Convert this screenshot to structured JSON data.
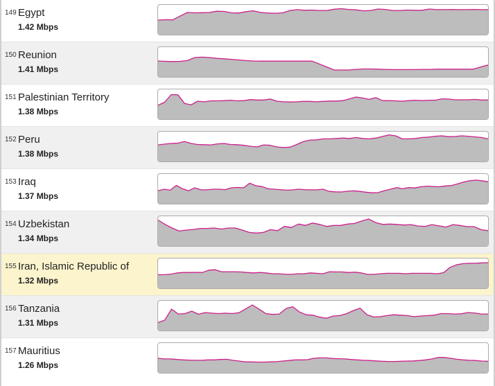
{
  "chart_data": {
    "type": "area",
    "colors": {
      "line": "#cc1f8a",
      "fill": "#bdbdbd",
      "highlight_row": "#fbf4cd"
    },
    "ylim": [
      0,
      1
    ],
    "rows": [
      {
        "rank": "149",
        "country": "Egypt",
        "speed": "1.42 Mbps",
        "values": [
          0.38,
          0.4,
          0.39,
          0.58,
          0.76,
          0.74,
          0.75,
          0.76,
          0.82,
          0.81,
          0.74,
          0.73,
          0.8,
          0.84,
          0.76,
          0.73,
          0.72,
          0.74,
          0.86,
          0.9,
          0.87,
          0.88,
          0.86,
          0.86,
          0.92,
          0.95,
          0.91,
          0.89,
          0.84,
          0.86,
          0.93,
          0.91,
          0.86,
          0.86,
          0.88,
          0.87,
          0.87,
          0.93,
          0.9,
          0.9,
          0.91,
          0.9,
          0.9,
          0.91,
          0.9,
          0.9
        ]
      },
      {
        "rank": "150",
        "country": "Reunion",
        "speed": "1.41 Mbps",
        "values": [
          0.45,
          0.43,
          0.42,
          0.43,
          0.47,
          0.62,
          0.64,
          0.62,
          0.58,
          0.56,
          0.53,
          0.5,
          0.47,
          0.45,
          0.44,
          0.44,
          0.44,
          0.44,
          0.44,
          0.44,
          0.44,
          0.44,
          0.3,
          0.15,
          0.0,
          0.0,
          0.0,
          0.03,
          0.05,
          0.05,
          0.04,
          0.03,
          0.02,
          0.02,
          0.02,
          0.02,
          0.03,
          0.03,
          0.04,
          0.04,
          0.04,
          0.04,
          0.04,
          0.04,
          0.15,
          0.25
        ]
      },
      {
        "rank": "151",
        "country": "Palestinian Territory",
        "speed": "1.38 Mbps",
        "values": [
          0.35,
          0.5,
          0.88,
          0.87,
          0.44,
          0.37,
          0.55,
          0.52,
          0.57,
          0.57,
          0.58,
          0.6,
          0.57,
          0.58,
          0.63,
          0.61,
          0.61,
          0.66,
          0.55,
          0.52,
          0.51,
          0.52,
          0.54,
          0.54,
          0.52,
          0.54,
          0.56,
          0.56,
          0.58,
          0.67,
          0.76,
          0.71,
          0.64,
          0.73,
          0.58,
          0.58,
          0.57,
          0.55,
          0.58,
          0.6,
          0.58,
          0.6,
          0.6,
          0.67,
          0.66,
          0.62,
          0.62,
          0.62,
          0.64,
          0.61,
          0.61
        ]
      },
      {
        "rank": "152",
        "country": "Peru",
        "speed": "1.38 Mbps",
        "values": [
          0.48,
          0.52,
          0.55,
          0.57,
          0.65,
          0.55,
          0.5,
          0.49,
          0.48,
          0.53,
          0.55,
          0.5,
          0.49,
          0.46,
          0.41,
          0.38,
          0.48,
          0.46,
          0.38,
          0.35,
          0.37,
          0.5,
          0.64,
          0.72,
          0.73,
          0.78,
          0.78,
          0.8,
          0.82,
          0.8,
          0.85,
          0.8,
          0.78,
          0.82,
          0.9,
          0.98,
          0.93,
          0.78,
          0.78,
          0.8,
          0.85,
          0.87,
          0.91,
          0.93,
          0.89,
          0.9,
          0.93,
          0.91,
          0.88,
          0.85,
          0.78
        ]
      },
      {
        "rank": "153",
        "country": "Iraq",
        "speed": "1.37 Mbps",
        "values": [
          0.3,
          0.38,
          0.33,
          0.57,
          0.4,
          0.3,
          0.45,
          0.35,
          0.35,
          0.38,
          0.38,
          0.36,
          0.45,
          0.47,
          0.45,
          0.68,
          0.55,
          0.51,
          0.4,
          0.38,
          0.36,
          0.33,
          0.35,
          0.38,
          0.36,
          0.35,
          0.35,
          0.38,
          0.27,
          0.25,
          0.24,
          0.28,
          0.3,
          0.27,
          0.23,
          0.2,
          0.21,
          0.3,
          0.38,
          0.46,
          0.4,
          0.46,
          0.44,
          0.5,
          0.53,
          0.51,
          0.5,
          0.54,
          0.56,
          0.64,
          0.73,
          0.8,
          0.83,
          0.8,
          0.75
        ]
      },
      {
        "rank": "154",
        "country": "Uzbekistan",
        "speed": "1.34 Mbps",
        "values": [
          0.95,
          0.73,
          0.55,
          0.4,
          0.45,
          0.48,
          0.53,
          0.53,
          0.55,
          0.5,
          0.55,
          0.55,
          0.45,
          0.33,
          0.3,
          0.33,
          0.47,
          0.42,
          0.63,
          0.58,
          0.75,
          0.68,
          0.8,
          0.73,
          0.63,
          0.68,
          0.68,
          0.75,
          0.78,
          0.9,
          1.0,
          0.82,
          0.73,
          0.75,
          0.73,
          0.7,
          0.72,
          0.65,
          0.63,
          0.72,
          0.66,
          0.6,
          0.72,
          0.68,
          0.62,
          0.62,
          0.47,
          0.42
        ]
      },
      {
        "rank": "155",
        "country": "Iran, Islamic Republic of",
        "speed": "1.32 Mbps",
        "values": [
          0.33,
          0.33,
          0.36,
          0.42,
          0.44,
          0.44,
          0.45,
          0.44,
          0.56,
          0.58,
          0.48,
          0.48,
          0.48,
          0.47,
          0.44,
          0.42,
          0.44,
          0.42,
          0.38,
          0.38,
          0.36,
          0.35,
          0.38,
          0.38,
          0.42,
          0.4,
          0.38,
          0.48,
          0.47,
          0.47,
          0.44,
          0.46,
          0.42,
          0.35,
          0.35,
          0.38,
          0.4,
          0.4,
          0.4,
          0.38,
          0.4,
          0.4,
          0.4,
          0.4,
          0.38,
          0.43,
          0.7,
          0.82,
          0.88,
          0.9,
          0.9,
          0.92,
          0.93
        ]
      },
      {
        "rank": "156",
        "country": "Tanzania",
        "speed": "1.31 Mbps",
        "values": [
          0.05,
          0.18,
          0.72,
          0.48,
          0.5,
          0.62,
          0.47,
          0.55,
          0.52,
          0.5,
          0.52,
          0.5,
          0.54,
          0.73,
          0.93,
          0.72,
          0.5,
          0.46,
          0.48,
          0.75,
          0.84,
          0.58,
          0.44,
          0.42,
          0.32,
          0.27,
          0.38,
          0.4,
          0.5,
          0.65,
          0.77,
          0.45,
          0.33,
          0.35,
          0.4,
          0.44,
          0.42,
          0.4,
          0.35,
          0.38,
          0.4,
          0.42,
          0.5,
          0.5,
          0.48,
          0.49,
          0.55,
          0.53,
          0.48,
          0.48
        ]
      },
      {
        "rank": "157",
        "country": "Mauritius",
        "speed": "1.26 Mbps",
        "values": [
          0.38,
          0.35,
          0.35,
          0.32,
          0.3,
          0.29,
          0.28,
          0.28,
          0.3,
          0.3,
          0.32,
          0.33,
          0.28,
          0.24,
          0.2,
          0.2,
          0.19,
          0.19,
          0.2,
          0.21,
          0.24,
          0.27,
          0.3,
          0.3,
          0.31,
          0.38,
          0.4,
          0.4,
          0.37,
          0.36,
          0.35,
          0.32,
          0.3,
          0.28,
          0.27,
          0.25,
          0.23,
          0.22,
          0.22,
          0.23,
          0.24,
          0.25,
          0.27,
          0.3,
          0.35,
          0.42,
          0.42,
          0.38,
          0.33,
          0.3,
          0.28,
          0.27,
          0.24,
          0.23
        ]
      }
    ]
  }
}
